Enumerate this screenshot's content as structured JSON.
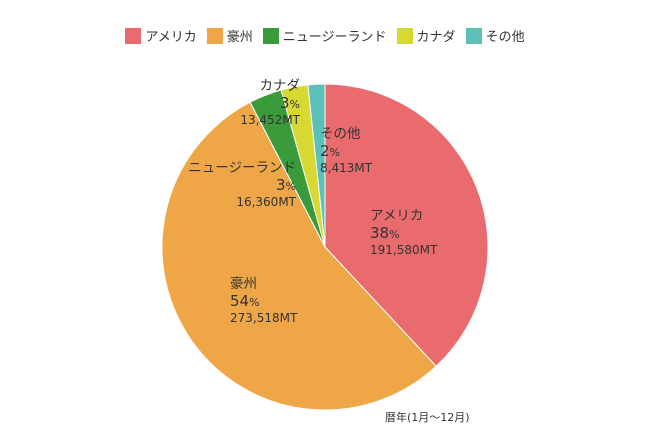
{
  "chart_data": {
    "type": "pie",
    "title": "",
    "footnote": "暦年(1月〜12月)",
    "legend_position": "top",
    "start_angle_deg": 0,
    "direction": "clockwise",
    "unit": "MT",
    "slices": [
      {
        "name": "アメリカ",
        "percent": 38,
        "percent_text": "38",
        "value": 191580,
        "value_text": "191,580MT",
        "color": "#E96B6E"
      },
      {
        "name": "豪州",
        "percent": 54,
        "percent_text": "54",
        "value": 273518,
        "value_text": "273,518MT",
        "color": "#EEA646"
      },
      {
        "name": "ニュージーランド",
        "percent": 3,
        "percent_text": "3",
        "value": 16360,
        "value_text": "16,360MT",
        "color": "#3A9B3A"
      },
      {
        "name": "カナダ",
        "percent": 3,
        "percent_text": "3",
        "value": 13452,
        "value_text": "13,452MT",
        "color": "#D8D832"
      },
      {
        "name": "その他",
        "percent": 2,
        "percent_text": "2",
        "value": 8413,
        "value_text": "8,413MT",
        "color": "#5CBFB8"
      }
    ]
  }
}
